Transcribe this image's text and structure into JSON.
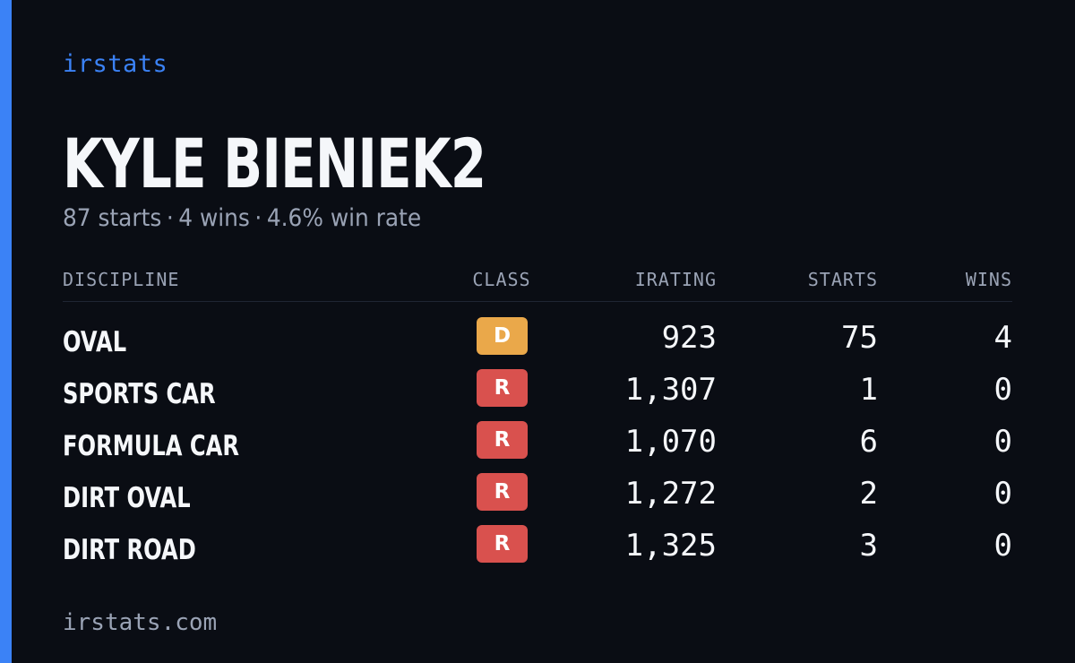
{
  "brand": "irstats",
  "driver": {
    "name": "KYLE BIENIEK2",
    "starts_text": "87 starts",
    "wins_text": "4 wins",
    "win_rate_text": "4.6% win rate",
    "separator": "·"
  },
  "table": {
    "headers": {
      "discipline": "DISCIPLINE",
      "class": "CLASS",
      "irating": "IRATING",
      "starts": "STARTS",
      "wins": "WINS"
    },
    "rows": [
      {
        "discipline": "OVAL",
        "class": "D",
        "class_color": "#eaa84a",
        "irating": "923",
        "starts": "75",
        "wins": "4"
      },
      {
        "discipline": "SPORTS CAR",
        "class": "R",
        "class_color": "#d9514e",
        "irating": "1,307",
        "starts": "1",
        "wins": "0"
      },
      {
        "discipline": "FORMULA CAR",
        "class": "R",
        "class_color": "#d9514e",
        "irating": "1,070",
        "starts": "6",
        "wins": "0"
      },
      {
        "discipline": "DIRT OVAL",
        "class": "R",
        "class_color": "#d9514e",
        "irating": "1,272",
        "starts": "2",
        "wins": "0"
      },
      {
        "discipline": "DIRT ROAD",
        "class": "R",
        "class_color": "#d9514e",
        "irating": "1,325",
        "starts": "3",
        "wins": "0"
      }
    ]
  },
  "footer": "irstats.com",
  "colors": {
    "background": "#0a0d14",
    "accent": "#3b82f6",
    "class_d": "#eaa84a",
    "class_r": "#d9514e"
  }
}
